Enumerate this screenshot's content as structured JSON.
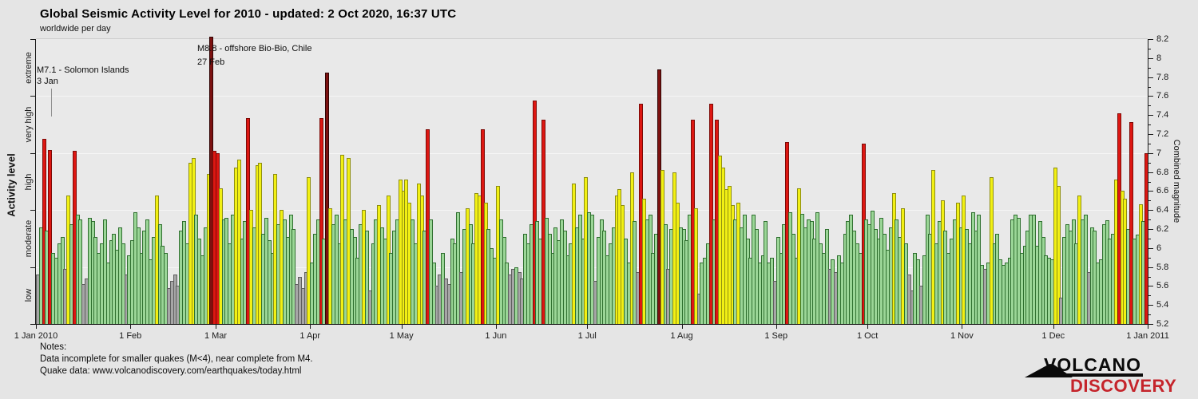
{
  "header": {
    "title": "Global Seismic Activity Level for 2010 - updated:  2 Oct 2020, 16:37 UTC",
    "subtitle": "worldwide per day"
  },
  "notes": {
    "heading": "Notes:",
    "line1": "Data incomplete for smaller quakes (M<4), near complete from M4.",
    "line2": "Quake data: www.volcanodiscovery.com/earthquakes/today.html"
  },
  "logo": {
    "line1": "VOLCANO",
    "line2": "DISCOVERY",
    "accent_color": "#c5242b"
  },
  "chart_data": {
    "type": "bar",
    "title": "Global Seismic Activity Level for 2010",
    "subtitle": "worldwide per day",
    "x_start_date": "2010-01-01",
    "days_in_year": 365,
    "ylim": [
      5.2,
      8.2
    ],
    "grid": "horizontal at activity-level boundaries",
    "y_left": {
      "label": "Activity level"
    },
    "y_right": {
      "label": "Combined magnitude",
      "minor_step": 0.1,
      "ticks": [
        {
          "label": "8.2",
          "value": 8.2
        },
        {
          "label": "8",
          "value": 8.0
        },
        {
          "label": "7.8",
          "value": 7.8
        },
        {
          "label": "7.6",
          "value": 7.6
        },
        {
          "label": "7.4",
          "value": 7.4
        },
        {
          "label": "7.2",
          "value": 7.2
        },
        {
          "label": "7",
          "value": 7.0
        },
        {
          "label": "6.8",
          "value": 6.8
        },
        {
          "label": "6.6",
          "value": 6.6
        },
        {
          "label": "6.4",
          "value": 6.4
        },
        {
          "label": "6.2",
          "value": 6.2
        },
        {
          "label": "6",
          "value": 6.0
        },
        {
          "label": "5.8",
          "value": 5.8
        },
        {
          "label": "5.6",
          "value": 5.6
        },
        {
          "label": "5.4",
          "value": 5.4
        },
        {
          "label": "5.2",
          "value": 5.2
        }
      ]
    },
    "level_boundaries": [
      5.8,
      6.4,
      7.0,
      7.6
    ],
    "bands": [
      {
        "label": "low",
        "from": 5.2,
        "to": 5.8,
        "fill": "#a6a6a6",
        "edge": "#5f5f5f"
      },
      {
        "label": "moderate",
        "from": 5.8,
        "to": 6.4,
        "fill": "#9bd697",
        "edge": "#2f6f2f"
      },
      {
        "label": "high",
        "from": 6.4,
        "to": 7.0,
        "fill": "#f2f014",
        "edge": "#8e8e10"
      },
      {
        "label": "very high",
        "from": 7.0,
        "to": 7.6,
        "fill": "#dd1712",
        "edge": "#7d0a06"
      },
      {
        "label": "extreme",
        "from": 7.6,
        "to": 8.2,
        "fill": "#7c1110",
        "edge": "#300303"
      }
    ],
    "x_ticks": [
      {
        "label": "1 Jan 2010",
        "day": 0
      },
      {
        "label": "1 Feb",
        "day": 31
      },
      {
        "label": "1 Mar",
        "day": 59
      },
      {
        "label": "1 Apr",
        "day": 90
      },
      {
        "label": "1 May",
        "day": 120
      },
      {
        "label": "1 Jun",
        "day": 151
      },
      {
        "label": "1 Jul",
        "day": 181
      },
      {
        "label": "1 Aug",
        "day": 212
      },
      {
        "label": "1 Sep",
        "day": 243
      },
      {
        "label": "1 Oct",
        "day": 273
      },
      {
        "label": "1 Nov",
        "day": 304
      },
      {
        "label": "1 Dec",
        "day": 334
      },
      {
        "label": "1 Jan 2011",
        "day": 365
      }
    ],
    "annotations": [
      {
        "line1": "M7.1 - Solomon Islands",
        "line2": "3 Jan"
      },
      {
        "line1": "M8.8 - offshore Bio-Bio, Chile",
        "line2": "27 Feb"
      }
    ],
    "values": [
      5.72,
      6.22,
      7.15,
      6.18,
      7.03,
      5.95,
      5.9,
      6.05,
      6.12,
      5.78,
      6.55,
      6.25,
      7.02,
      6.35,
      6.3,
      5.62,
      5.68,
      6.32,
      6.28,
      6.12,
      5.95,
      6.05,
      6.3,
      5.85,
      6.08,
      6.15,
      5.98,
      6.22,
      6.05,
      5.72,
      5.92,
      6.08,
      6.38,
      6.22,
      5.95,
      6.18,
      6.3,
      5.88,
      6.12,
      6.55,
      6.25,
      6.02,
      5.95,
      5.58,
      5.65,
      5.72,
      5.6,
      6.18,
      6.28,
      6.05,
      6.9,
      6.95,
      6.35,
      6.1,
      5.92,
      6.22,
      6.78,
      8.8,
      7.02,
      7.0,
      6.63,
      6.3,
      6.32,
      6.05,
      6.35,
      6.85,
      6.93,
      6.1,
      6.28,
      7.37,
      6.4,
      6.22,
      6.87,
      6.9,
      6.15,
      6.32,
      6.08,
      5.95,
      6.78,
      6.25,
      6.4,
      6.3,
      6.12,
      6.35,
      6.2,
      5.62,
      5.7,
      5.58,
      5.75,
      6.75,
      5.85,
      6.15,
      6.3,
      7.37,
      6.1,
      7.85,
      6.42,
      6.25,
      6.35,
      6.05,
      6.98,
      6.3,
      6.95,
      6.2,
      6.12,
      5.9,
      6.25,
      6.4,
      6.18,
      5.55,
      6.05,
      6.3,
      6.45,
      6.22,
      6.1,
      6.55,
      5.95,
      6.18,
      6.3,
      6.72,
      6.6,
      6.72,
      6.48,
      6.3,
      6.05,
      6.68,
      6.55,
      6.18,
      7.25,
      6.3,
      5.85,
      5.6,
      5.72,
      5.95,
      5.68,
      5.62,
      6.1,
      6.05,
      6.38,
      5.75,
      6.2,
      6.42,
      6.25,
      6.05,
      6.58,
      6.55,
      7.25,
      6.48,
      6.2,
      6.0,
      5.9,
      6.65,
      6.3,
      6.12,
      5.85,
      5.72,
      5.78,
      5.8,
      5.75,
      5.68,
      6.15,
      6.05,
      6.25,
      7.55,
      6.28,
      6.1,
      7.35,
      6.32,
      6.15,
      5.95,
      6.22,
      6.08,
      6.3,
      6.18,
      5.92,
      6.05,
      6.68,
      6.22,
      6.35,
      6.1,
      6.75,
      6.38,
      6.35,
      5.65,
      6.12,
      6.3,
      6.18,
      5.92,
      6.05,
      6.22,
      6.55,
      6.62,
      6.45,
      6.1,
      5.85,
      6.8,
      6.28,
      5.75,
      7.52,
      6.52,
      6.3,
      6.35,
      5.95,
      6.15,
      7.88,
      6.82,
      6.25,
      5.78,
      6.2,
      6.8,
      6.48,
      6.22,
      6.2,
      6.08,
      6.35,
      7.35,
      6.42,
      5.52,
      5.85,
      5.9,
      6.05,
      7.52,
      6.3,
      7.35,
      6.97,
      6.85,
      6.62,
      6.65,
      6.45,
      6.3,
      6.48,
      6.22,
      6.35,
      6.1,
      5.9,
      6.35,
      6.2,
      5.85,
      5.92,
      6.28,
      5.85,
      5.9,
      5.65,
      6.12,
      5.95,
      6.25,
      7.12,
      6.38,
      6.15,
      5.9,
      6.63,
      6.36,
      6.22,
      6.3,
      6.28,
      6.1,
      6.38,
      6.05,
      5.95,
      6.2,
      5.78,
      5.88,
      5.75,
      5.92,
      5.85,
      6.15,
      6.28,
      6.35,
      6.18,
      6.05,
      5.95,
      7.1,
      6.3,
      6.25,
      6.39,
      6.2,
      6.1,
      6.32,
      6.15,
      5.98,
      6.22,
      6.58,
      6.3,
      6.12,
      6.42,
      6.05,
      5.72,
      5.55,
      5.95,
      5.88,
      5.6,
      5.92,
      6.35,
      6.15,
      6.82,
      6.05,
      6.28,
      6.5,
      6.18,
      5.95,
      6.1,
      6.3,
      6.48,
      6.22,
      6.55,
      6.2,
      6.05,
      6.38,
      6.18,
      6.35,
      5.82,
      5.78,
      5.85,
      6.75,
      6.05,
      6.15,
      5.88,
      5.82,
      5.85,
      5.9,
      6.3,
      6.35,
      6.32,
      5.95,
      6.02,
      6.18,
      6.35,
      6.35,
      6.02,
      6.28,
      6.12,
      5.92,
      5.9,
      5.88,
      6.85,
      6.65,
      5.48,
      6.12,
      6.25,
      6.18,
      6.3,
      6.05,
      6.55,
      6.3,
      6.35,
      5.75,
      6.22,
      6.18,
      5.85,
      5.88,
      6.25,
      6.29,
      6.1,
      6.15,
      6.72,
      7.42,
      6.6,
      6.52,
      6.2,
      7.33,
      6.1,
      6.14,
      6.46,
      6.28,
      7.0
    ]
  }
}
